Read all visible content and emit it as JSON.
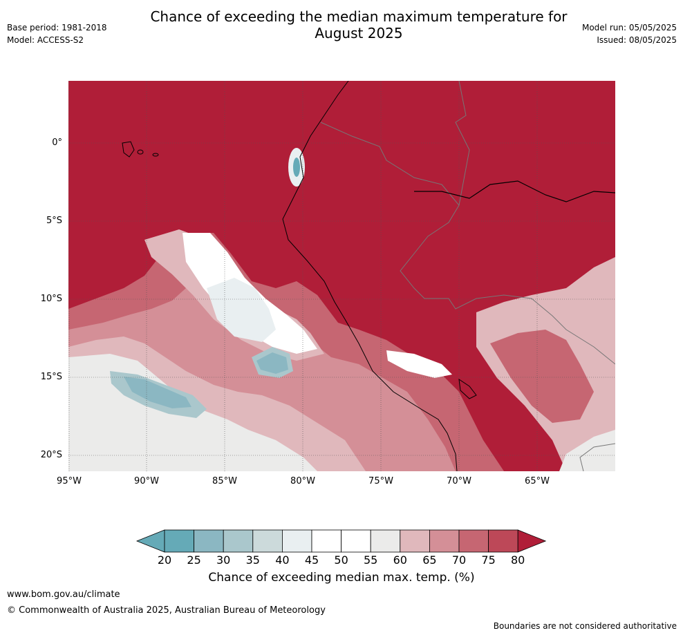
{
  "header": {
    "title": "Chance of exceeding the median maximum temperature for\nAugust 2025",
    "base_period": "Base period: 1981-2018",
    "model": "Model: ACCESS-S2",
    "model_run": "Model run: 05/05/2025",
    "issued": "Issued: 08/05/2025"
  },
  "map": {
    "lat_labels": [
      "0°",
      "5°S",
      "10°S",
      "15°S",
      "20°S"
    ],
    "lon_labels": [
      "95°W",
      "90°W",
      "85°W",
      "80°W",
      "75°W",
      "70°W",
      "65°W"
    ]
  },
  "colorbar": {
    "title": "Chance of exceeding median max. temp. (%)",
    "ticks": [
      "20",
      "25",
      "30",
      "35",
      "40",
      "45",
      "50",
      "55",
      "60",
      "65",
      "70",
      "75",
      "80"
    ],
    "colors": [
      "#65aab7",
      "#8bb7c2",
      "#aac7cc",
      "#ccdadb",
      "#e9eff1",
      "#ffffff",
      "#ffffff",
      "#ebebea",
      "#e0b8bc",
      "#d48f97",
      "#c66672",
      "#bd4858",
      "#b01e38"
    ]
  },
  "footer": {
    "website": "www.bom.gov.au/climate",
    "copyright": "© Commonwealth of Australia 2025, Australian Bureau of Meteorology",
    "disclaimer": "Boundaries are not considered authoritative"
  }
}
